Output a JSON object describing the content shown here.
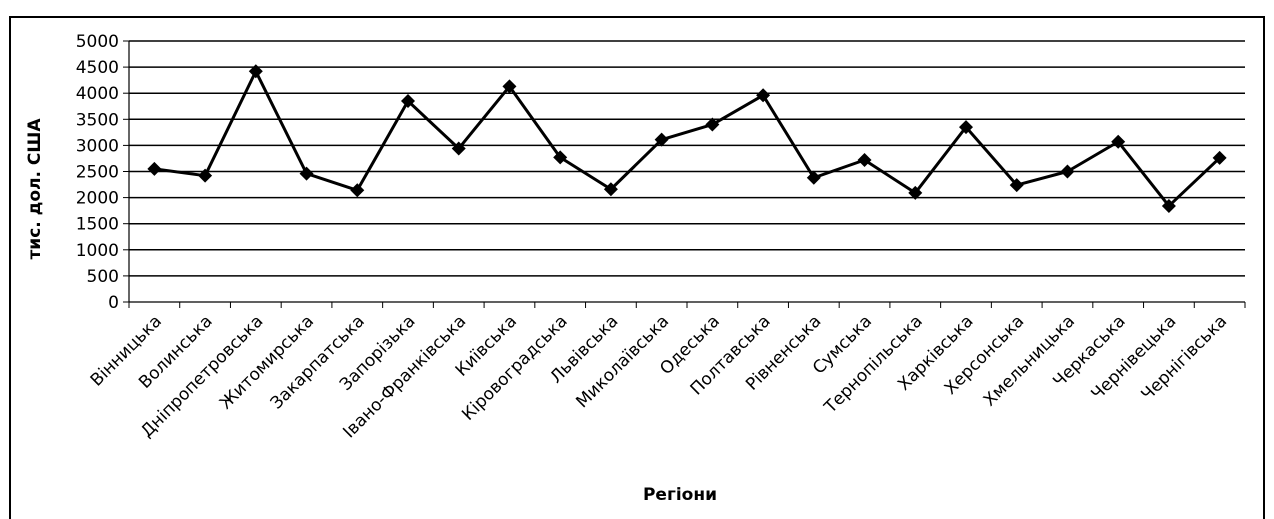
{
  "chart_data": {
    "type": "line",
    "title": "",
    "xlabel": "Регіони",
    "ylabel": "тис. дол. США",
    "ylim": [
      0,
      5000
    ],
    "yticks": [
      0,
      500,
      1000,
      1500,
      2000,
      2500,
      3000,
      3500,
      4000,
      4500,
      5000
    ],
    "grid": true,
    "categories": [
      "Вінницька",
      "Волинська",
      "Дніпропетровська",
      "Житомирська",
      "Закарпатська",
      "Запорізька",
      "Івано-Франківська",
      "Київська",
      "Кіровоградська",
      "Львівська",
      "Миколаївська",
      "Одеська",
      "Полтавська",
      "Рівненська",
      "Сумська",
      "Тернопільська",
      "Харківська",
      "Херсонська",
      "Хмельницька",
      "Черкаська",
      "Чернівецька",
      "Чернігівська"
    ],
    "series": [
      {
        "values": [
          2550,
          2420,
          4420,
          2460,
          2140,
          3850,
          2940,
          4130,
          2770,
          2160,
          3110,
          3400,
          3960,
          2380,
          2720,
          2090,
          3350,
          2240,
          2500,
          3070,
          1840,
          2760
        ],
        "color": "#000000",
        "marker": "diamond"
      }
    ]
  }
}
